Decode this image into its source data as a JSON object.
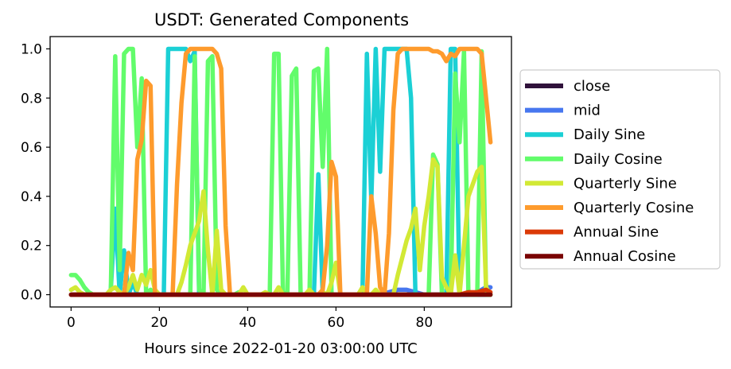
{
  "chart_data": {
    "type": "line",
    "title": "USDT: Generated Components",
    "xlabel": "Hours since 2022-01-20 03:00:00 UTC",
    "ylabel": "",
    "xlim": [
      -4.75,
      99.75
    ],
    "ylim": [
      -0.05,
      1.05
    ],
    "xticks": [
      0,
      20,
      40,
      60,
      80
    ],
    "yticks": [
      0.0,
      0.2,
      0.4,
      0.6,
      0.8,
      1.0
    ],
    "ytick_labels": [
      "0.0",
      "0.2",
      "0.4",
      "0.6",
      "0.8",
      "1.0"
    ],
    "grid": false,
    "legend_position": "outside-right",
    "series": [
      {
        "name": "close",
        "color": "#30123b",
        "x": [
          0,
          95
        ],
        "y": [
          0.0,
          0.0
        ]
      },
      {
        "name": "mid",
        "color": "#4777ef",
        "x": [
          0,
          70,
          72,
          74,
          76,
          78,
          80,
          90,
          92,
          94,
          95
        ],
        "y": [
          0.0,
          0.0,
          0.01,
          0.02,
          0.02,
          0.01,
          0.0,
          0.0,
          0.01,
          0.03,
          0.03
        ]
      },
      {
        "name": "Daily Sine",
        "color": "#1bd0d5",
        "x": [
          0,
          8,
          9,
          10,
          11,
          12,
          13,
          14,
          15,
          16,
          17,
          18,
          19,
          20,
          21,
          22,
          26,
          27,
          28,
          29,
          30,
          31,
          32,
          33,
          34,
          35,
          36,
          37,
          38,
          39,
          40,
          41,
          42,
          43,
          44,
          45,
          46,
          47,
          48,
          49,
          50,
          51,
          52,
          53,
          54,
          55,
          56,
          57,
          58,
          59,
          60,
          61,
          62,
          63,
          64,
          65,
          66,
          67,
          68,
          69,
          70,
          71,
          72,
          73,
          74,
          75,
          76,
          77,
          78,
          79,
          80,
          81,
          82,
          83,
          84,
          85,
          86,
          87,
          88,
          89,
          90,
          91,
          92,
          93,
          94,
          95
        ],
        "y": [
          0.0,
          0.0,
          0.02,
          0.35,
          0.0,
          0.18,
          0.0,
          0.05,
          0.0,
          0.0,
          0.0,
          0.0,
          0.0,
          0.0,
          0.0,
          1.0,
          1.0,
          0.95,
          0.99,
          0.0,
          0.0,
          0.0,
          0.0,
          0.0,
          0.0,
          0.0,
          0.0,
          0.0,
          0.0,
          0.0,
          0.0,
          0.0,
          0.0,
          0.0,
          0.0,
          0.0,
          0.0,
          0.0,
          0.0,
          0.0,
          0.0,
          0.0,
          0.0,
          0.0,
          0.0,
          0.0,
          0.49,
          0.0,
          0.0,
          0.0,
          0.0,
          0.0,
          0.0,
          0.0,
          0.0,
          0.0,
          0.0,
          0.98,
          0.38,
          1.0,
          0.5,
          1.0,
          1.0,
          1.0,
          1.0,
          1.0,
          1.0,
          0.8,
          0.0,
          0.0,
          0.0,
          0.0,
          0.0,
          0.0,
          0.0,
          0.0,
          1.0,
          1.0,
          0.0,
          0.0,
          0.0,
          0.0,
          0.0,
          0.0,
          0.0,
          0.0
        ]
      },
      {
        "name": "Daily Cosine",
        "color": "#62fc6b",
        "x": [
          0,
          1,
          2,
          3,
          4,
          5,
          6,
          7,
          8,
          9,
          10,
          11,
          12,
          13,
          14,
          15,
          16,
          17,
          18,
          19,
          20,
          21,
          22,
          23,
          24,
          25,
          26,
          27,
          28,
          29,
          30,
          31,
          32,
          33,
          34,
          35,
          36,
          37,
          38,
          39,
          40,
          41,
          42,
          43,
          44,
          45,
          46,
          47,
          48,
          49,
          50,
          51,
          52,
          53,
          54,
          55,
          56,
          57,
          58,
          59,
          60,
          61,
          62,
          63,
          64,
          65,
          66,
          67,
          68,
          69,
          70,
          71,
          72,
          73,
          74,
          75,
          76,
          77,
          78,
          79,
          80,
          81,
          82,
          83,
          84,
          85,
          86,
          87,
          88,
          89,
          90,
          91,
          92,
          93,
          94,
          95
        ],
        "y": [
          0.08,
          0.08,
          0.06,
          0.03,
          0.01,
          0.0,
          0.0,
          0.0,
          0.0,
          0.02,
          0.97,
          0.1,
          0.98,
          1.0,
          1.0,
          0.6,
          0.88,
          0.0,
          0.02,
          0.0,
          0.0,
          0.0,
          0.0,
          0.0,
          0.0,
          0.0,
          0.0,
          0.0,
          0.97,
          0.02,
          0.0,
          0.95,
          0.97,
          0.02,
          0.0,
          0.0,
          0.0,
          0.0,
          0.01,
          0.0,
          0.0,
          0.0,
          0.0,
          0.0,
          0.0,
          0.0,
          0.98,
          0.98,
          0.0,
          0.01,
          0.89,
          0.92,
          0.0,
          0.0,
          0.0,
          0.91,
          0.92,
          0.52,
          1.0,
          0.0,
          0.0,
          0.0,
          0.0,
          0.0,
          0.0,
          0.0,
          0.0,
          0.0,
          0.0,
          0.0,
          0.0,
          0.0,
          0.0,
          0.0,
          0.0,
          0.0,
          0.0,
          0.0,
          0.0,
          0.0,
          0.0,
          0.0,
          0.57,
          0.53,
          0.0,
          0.0,
          0.0,
          0.9,
          0.62,
          0.99,
          0.0,
          0.0,
          0.0,
          0.99,
          0.0,
          0.0
        ]
      },
      {
        "name": "Quarterly Sine",
        "color": "#d2e935",
        "x": [
          0,
          1,
          2,
          3,
          4,
          5,
          6,
          7,
          8,
          9,
          10,
          11,
          12,
          13,
          14,
          15,
          16,
          17,
          18,
          19,
          20,
          21,
          22,
          23,
          24,
          25,
          26,
          27,
          28,
          29,
          30,
          31,
          32,
          33,
          34,
          35,
          36,
          37,
          38,
          39,
          40,
          41,
          42,
          43,
          44,
          45,
          46,
          47,
          48,
          49,
          50,
          51,
          52,
          53,
          54,
          55,
          56,
          57,
          58,
          59,
          60,
          61,
          62,
          63,
          64,
          65,
          66,
          67,
          68,
          69,
          70,
          71,
          72,
          73,
          74,
          75,
          76,
          77,
          78,
          79,
          80,
          81,
          82,
          83,
          84,
          85,
          86,
          87,
          88,
          89,
          90,
          91,
          92,
          93,
          94,
          95
        ],
        "y": [
          0.02,
          0.03,
          0.01,
          0.0,
          0.0,
          0.0,
          0.0,
          0.0,
          0.0,
          0.02,
          0.03,
          0.01,
          0.0,
          0.03,
          0.08,
          0.02,
          0.08,
          0.04,
          0.1,
          0.02,
          0.0,
          0.0,
          0.0,
          0.0,
          0.0,
          0.05,
          0.12,
          0.2,
          0.25,
          0.3,
          0.42,
          0.18,
          0.0,
          0.26,
          0.02,
          0.0,
          0.0,
          0.0,
          0.0,
          0.03,
          0.0,
          0.0,
          0.0,
          0.0,
          0.01,
          0.0,
          0.0,
          0.03,
          0.0,
          0.0,
          0.0,
          0.0,
          0.0,
          0.0,
          0.02,
          0.0,
          0.0,
          0.01,
          0.0,
          0.05,
          0.13,
          0.0,
          0.0,
          0.0,
          0.0,
          0.0,
          0.03,
          0.0,
          0.0,
          0.02,
          0.0,
          0.0,
          0.0,
          0.0,
          0.08,
          0.15,
          0.22,
          0.27,
          0.35,
          0.1,
          0.28,
          0.4,
          0.55,
          0.52,
          0.07,
          0.03,
          0.0,
          0.16,
          0.0,
          0.2,
          0.4,
          0.45,
          0.5,
          0.52,
          0.03,
          0.0
        ]
      },
      {
        "name": "Quarterly Cosine",
        "color": "#fe9b2d",
        "x": [
          0,
          12,
          13,
          14,
          15,
          16,
          17,
          18,
          19,
          20,
          21,
          22,
          23,
          24,
          25,
          26,
          27,
          28,
          29,
          30,
          31,
          32,
          33,
          34,
          35,
          36,
          37,
          56,
          57,
          58,
          59,
          60,
          61,
          62,
          67,
          68,
          69,
          70,
          71,
          72,
          73,
          74,
          75,
          76,
          77,
          78,
          79,
          80,
          81,
          82,
          83,
          84,
          85,
          86,
          87,
          88,
          89,
          90,
          91,
          92,
          93,
          94,
          95
        ],
        "y": [
          0.0,
          0.0,
          0.17,
          0.1,
          0.55,
          0.63,
          0.87,
          0.85,
          0.0,
          0.0,
          0.0,
          0.0,
          0.0,
          0.45,
          0.78,
          0.98,
          1.0,
          1.0,
          1.0,
          1.0,
          1.0,
          1.0,
          0.98,
          0.92,
          0.28,
          0.0,
          0.0,
          0.0,
          0.02,
          0.2,
          0.54,
          0.48,
          0.0,
          0.0,
          0.0,
          0.4,
          0.25,
          0.03,
          0.0,
          0.25,
          0.75,
          0.98,
          1.0,
          1.0,
          1.0,
          1.0,
          1.0,
          1.0,
          1.0,
          0.99,
          0.99,
          0.98,
          0.95,
          0.98,
          0.97,
          1.0,
          1.0,
          1.0,
          1.0,
          1.0,
          0.98,
          0.8,
          0.62
        ]
      },
      {
        "name": "Annual Sine",
        "color": "#db3a07",
        "x": [
          0,
          88,
          90,
          92,
          94,
          95
        ],
        "y": [
          0.0,
          0.0,
          0.01,
          0.01,
          0.02,
          0.01
        ]
      },
      {
        "name": "Annual Cosine",
        "color": "#7a0403",
        "x": [
          0,
          95
        ],
        "y": [
          0.0,
          0.0
        ]
      }
    ]
  }
}
